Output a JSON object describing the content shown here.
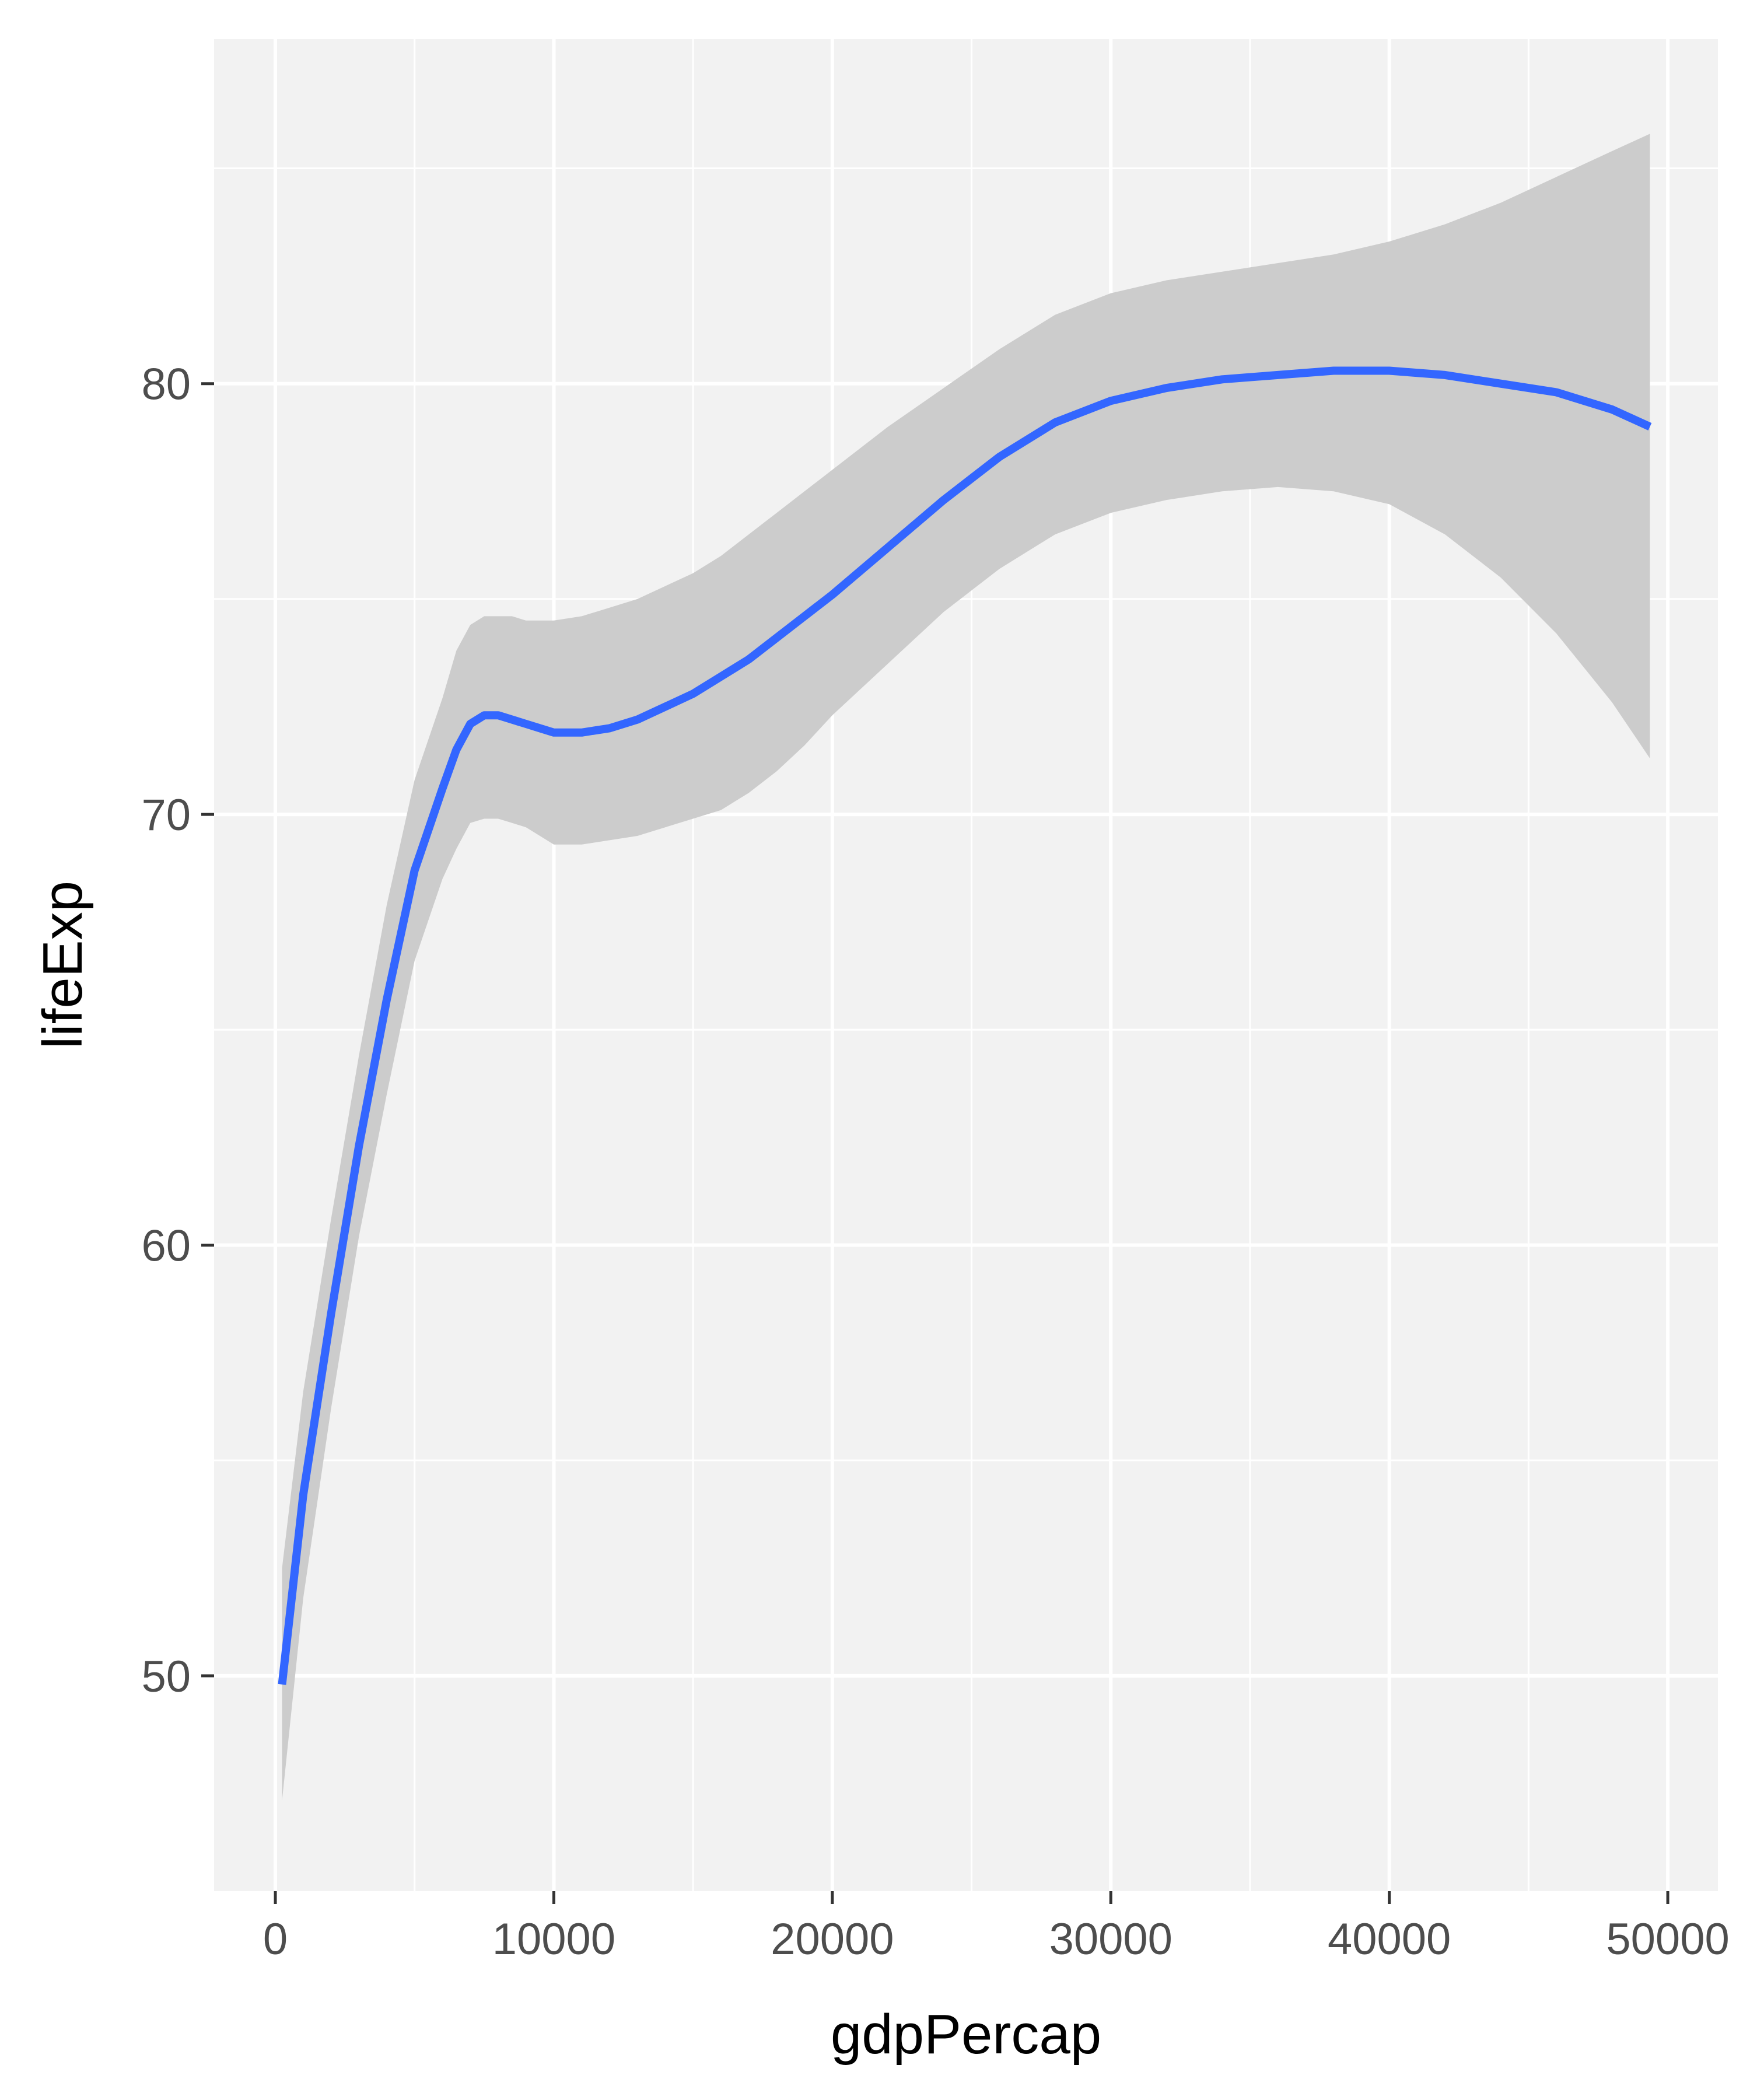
{
  "chart_data": {
    "type": "line",
    "title": "",
    "xlabel": "gdpPercap",
    "ylabel": "lifeExp",
    "xlim": [
      -2200,
      51800
    ],
    "ylim": [
      45,
      88
    ],
    "grid": true,
    "legend": "none",
    "x_ticks": [
      0,
      10000,
      20000,
      30000,
      40000,
      50000
    ],
    "x_tick_labels": [
      "0",
      "10000",
      "20000",
      "30000",
      "40000",
      "50000"
    ],
    "y_ticks": [
      50,
      60,
      70,
      80
    ],
    "y_tick_labels": [
      "50",
      "60",
      "70",
      "80"
    ],
    "x_minor_ticks": [
      5000,
      15000,
      25000,
      35000,
      45000
    ],
    "y_minor_ticks": [
      55,
      65,
      75,
      85
    ],
    "series": [
      {
        "kind": "smooth-fit",
        "color": "#3366ff",
        "band_color": "#cccccc",
        "x": [
          241,
          1000,
          2000,
          3000,
          4000,
          5000,
          6000,
          6500,
          7000,
          7500,
          8000,
          8500,
          9000,
          9500,
          10000,
          11000,
          12000,
          13000,
          14000,
          15000,
          16000,
          17000,
          18000,
          19000,
          20000,
          22000,
          24000,
          26000,
          28000,
          30000,
          32000,
          34000,
          36000,
          38000,
          40000,
          42000,
          44000,
          46000,
          48000,
          49357
        ],
        "y": [
          49.8,
          54.2,
          58.4,
          62.3,
          65.7,
          68.7,
          70.6,
          71.5,
          72.1,
          72.3,
          72.3,
          72.2,
          72.1,
          72.0,
          71.9,
          71.9,
          72.0,
          72.2,
          72.5,
          72.8,
          73.2,
          73.6,
          74.1,
          74.6,
          75.1,
          76.2,
          77.3,
          78.3,
          79.1,
          79.6,
          79.9,
          80.1,
          80.2,
          80.3,
          80.3,
          80.2,
          80.0,
          79.8,
          79.4,
          79.0
        ],
        "upper": [
          52.5,
          56.6,
          60.6,
          64.4,
          67.9,
          70.8,
          72.7,
          73.8,
          74.4,
          74.6,
          74.6,
          74.6,
          74.5,
          74.5,
          74.5,
          74.6,
          74.8,
          75.0,
          75.3,
          75.6,
          76.0,
          76.5,
          77.0,
          77.5,
          78.0,
          79.0,
          79.9,
          80.8,
          81.6,
          82.1,
          82.4,
          82.6,
          82.8,
          83.0,
          83.3,
          83.7,
          84.2,
          84.8,
          85.4,
          85.8
        ],
        "lower": [
          47.1,
          51.8,
          56.2,
          60.2,
          63.5,
          66.6,
          68.5,
          69.2,
          69.8,
          69.9,
          69.9,
          69.8,
          69.7,
          69.5,
          69.3,
          69.3,
          69.4,
          69.5,
          69.7,
          69.9,
          70.1,
          70.5,
          71.0,
          71.6,
          72.3,
          73.5,
          74.7,
          75.7,
          76.5,
          77.0,
          77.3,
          77.5,
          77.6,
          77.5,
          77.2,
          76.5,
          75.5,
          74.2,
          72.6,
          71.3
        ]
      }
    ]
  }
}
